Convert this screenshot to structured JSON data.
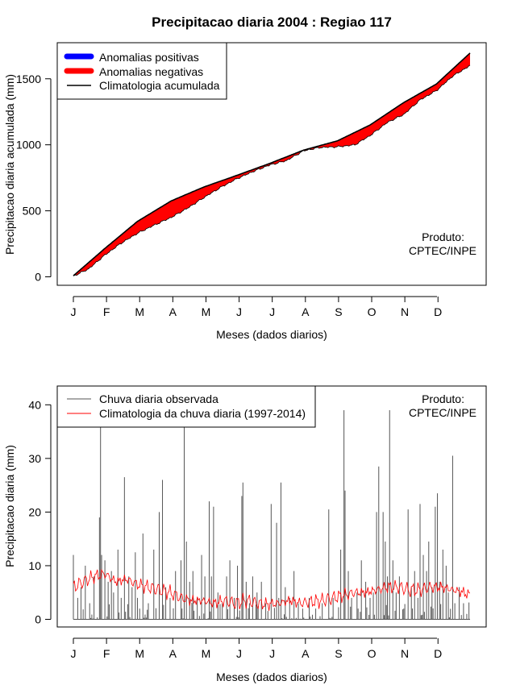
{
  "title": "Precipitacao diaria 2004 : Regiao 117",
  "product_label_1": "Produto:",
  "product_label_2": "CPTEC/INPE",
  "month_ticks": [
    "J",
    "F",
    "M",
    "A",
    "M",
    "J",
    "J",
    "A",
    "S",
    "O",
    "N",
    "D"
  ],
  "colors": {
    "positive": "#0000ff",
    "negative": "#ff0000",
    "climatology": "#000000",
    "observed": "#555555",
    "clim_daily": "#ff0000"
  },
  "chart_data": [
    {
      "type": "area",
      "id": "accumulated",
      "xlabel": "Meses (dados diarios)",
      "ylabel": "Precipitacao diaria acumulada (mm)",
      "ylim": [
        0,
        1700
      ],
      "yticks": [
        0,
        500,
        1000,
        1500
      ],
      "legend_position": "top-left",
      "legend": [
        "Anomalias positivas",
        "Anomalias negativas",
        "Climatologia acumulada"
      ],
      "days": 366,
      "climatology_anchors": [
        [
          1,
          8
        ],
        [
          30,
          215
        ],
        [
          60,
          420
        ],
        [
          91,
          575
        ],
        [
          121,
          680
        ],
        [
          152,
          770
        ],
        [
          182,
          860
        ],
        [
          213,
          960
        ],
        [
          244,
          1030
        ],
        [
          274,
          1150
        ],
        [
          305,
          1320
        ],
        [
          335,
          1460
        ],
        [
          366,
          1695
        ]
      ],
      "observed_anchors": [
        [
          1,
          5
        ],
        [
          15,
          60
        ],
        [
          30,
          165
        ],
        [
          45,
          255
        ],
        [
          60,
          330
        ],
        [
          75,
          390
        ],
        [
          91,
          450
        ],
        [
          106,
          520
        ],
        [
          121,
          600
        ],
        [
          137,
          680
        ],
        [
          152,
          745
        ],
        [
          167,
          800
        ],
        [
          182,
          848
        ],
        [
          197,
          880
        ],
        [
          213,
          955
        ],
        [
          228,
          980
        ],
        [
          244,
          985
        ],
        [
          260,
          1000
        ],
        [
          274,
          1070
        ],
        [
          290,
          1170
        ],
        [
          305,
          1230
        ],
        [
          320,
          1340
        ],
        [
          335,
          1410
        ],
        [
          350,
          1520
        ],
        [
          366,
          1600
        ]
      ]
    },
    {
      "type": "line",
      "id": "daily",
      "xlabel": "Meses (dados diarios)",
      "ylabel": "Precipitacao diaria (mm)",
      "ylim": [
        0,
        42
      ],
      "yticks": [
        0,
        10,
        20,
        30,
        40
      ],
      "legend_position": "top-left",
      "legend": [
        "Chuva diaria observada",
        "Climatologia da chuva diaria (1997-2014)"
      ],
      "days": 366,
      "series": [
        {
          "name": "Chuva diaria observada",
          "peaks": [
            [
              1,
              12
            ],
            [
              5,
              4
            ],
            [
              8,
              6
            ],
            [
              12,
              10
            ],
            [
              16,
              3
            ],
            [
              20,
              8
            ],
            [
              25,
              19
            ],
            [
              26,
              36
            ],
            [
              27,
              12
            ],
            [
              30,
              11
            ],
            [
              33,
              7
            ],
            [
              36,
              9
            ],
            [
              38,
              5
            ],
            [
              42,
              13
            ],
            [
              45,
              4
            ],
            [
              48,
              26.5
            ],
            [
              52,
              8
            ],
            [
              55,
              6
            ],
            [
              58,
              12.5
            ],
            [
              60,
              4
            ],
            [
              62,
              2
            ],
            [
              65,
              16
            ],
            [
              70,
              3
            ],
            [
              75,
              13
            ],
            [
              80,
              20
            ],
            [
              83,
              26
            ],
            [
              86,
              6
            ],
            [
              90,
              4
            ],
            [
              95,
              9
            ],
            [
              100,
              11
            ],
            [
              103,
              36
            ],
            [
              105,
              14.5
            ],
            [
              108,
              7
            ],
            [
              111,
              9
            ],
            [
              115,
              4
            ],
            [
              119,
              12
            ],
            [
              122,
              8
            ],
            [
              126,
              22
            ],
            [
              128,
              8
            ],
            [
              130,
              21
            ],
            [
              134,
              5
            ],
            [
              138,
              3
            ],
            [
              142,
              8
            ],
            [
              145,
              11
            ],
            [
              149,
              4
            ],
            [
              152,
              10
            ],
            [
              156,
              23
            ],
            [
              157,
              25.5
            ],
            [
              160,
              7
            ],
            [
              163,
              3
            ],
            [
              166,
              8
            ],
            [
              170,
              5
            ],
            [
              174,
              7
            ],
            [
              178,
              3
            ],
            [
              183,
              21.5
            ],
            [
              188,
              18
            ],
            [
              190,
              4
            ],
            [
              192,
              25.5
            ],
            [
              196,
              6
            ],
            [
              200,
              4
            ],
            [
              204,
              9
            ],
            [
              208,
              3
            ],
            [
              212,
              2
            ],
            [
              218,
              4
            ],
            [
              224,
              2
            ],
            [
              230,
              3
            ],
            [
              236,
              20.5
            ],
            [
              240,
              4
            ],
            [
              247,
              13
            ],
            [
              250,
              39
            ],
            [
              251,
              24
            ],
            [
              254,
              9
            ],
            [
              257,
              4
            ],
            [
              262,
              5
            ],
            [
              266,
              11
            ],
            [
              270,
              7
            ],
            [
              274,
              4
            ],
            [
              277,
              5
            ],
            [
              280,
              20
            ],
            [
              282,
              28.5
            ],
            [
              284,
              5
            ],
            [
              286,
              20
            ],
            [
              288,
              14.5
            ],
            [
              290,
              8
            ],
            [
              292,
              39
            ],
            [
              295,
              11
            ],
            [
              298,
              5
            ],
            [
              301,
              8
            ],
            [
              305,
              2
            ],
            [
              309,
              20.5
            ],
            [
              312,
              6
            ],
            [
              315,
              9
            ],
            [
              318,
              4
            ],
            [
              320,
              21.5
            ],
            [
              323,
              12
            ],
            [
              326,
              9
            ],
            [
              328,
              14.5
            ],
            [
              331,
              6
            ],
            [
              334,
              21
            ],
            [
              336,
              23.5
            ],
            [
              338,
              7
            ],
            [
              341,
              13
            ],
            [
              344,
              10
            ],
            [
              346,
              5
            ],
            [
              350,
              30.5
            ],
            [
              352,
              3
            ],
            [
              356,
              6
            ],
            [
              360,
              3
            ]
          ]
        },
        {
          "name": "Climatologia da chuva diaria (1997-2014)",
          "anchors": [
            [
              1,
              6
            ],
            [
              10,
              7
            ],
            [
              20,
              8
            ],
            [
              30,
              8.5
            ],
            [
              40,
              7
            ],
            [
              50,
              7.5
            ],
            [
              60,
              6.5
            ],
            [
              70,
              6
            ],
            [
              80,
              5.5
            ],
            [
              90,
              5
            ],
            [
              100,
              4
            ],
            [
              110,
              3.5
            ],
            [
              120,
              3.5
            ],
            [
              130,
              3
            ],
            [
              140,
              3.5
            ],
            [
              150,
              3
            ],
            [
              160,
              3.5
            ],
            [
              170,
              3
            ],
            [
              180,
              2.8
            ],
            [
              190,
              3
            ],
            [
              200,
              3.5
            ],
            [
              210,
              3
            ],
            [
              220,
              3.3
            ],
            [
              230,
              3.5
            ],
            [
              240,
              4
            ],
            [
              250,
              4.5
            ],
            [
              260,
              5
            ],
            [
              270,
              5
            ],
            [
              280,
              5.5
            ],
            [
              290,
              6
            ],
            [
              300,
              6
            ],
            [
              310,
              5.5
            ],
            [
              320,
              5.5
            ],
            [
              330,
              6
            ],
            [
              340,
              6
            ],
            [
              350,
              5.5
            ],
            [
              360,
              5
            ],
            [
              366,
              4.5
            ]
          ]
        }
      ]
    }
  ]
}
